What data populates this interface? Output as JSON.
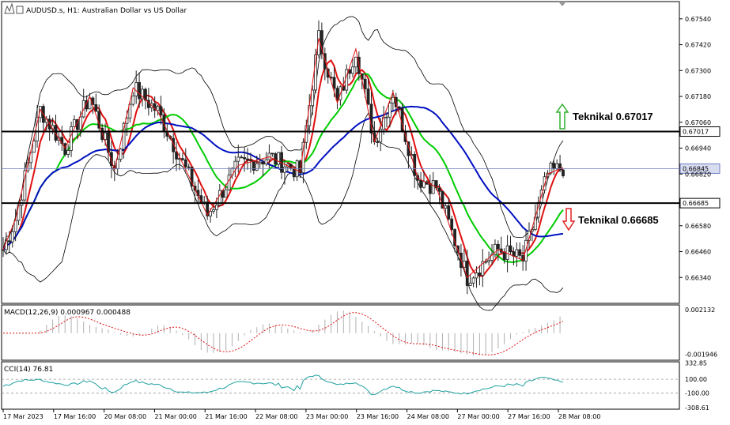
{
  "chart_data": {
    "type": "candlestick",
    "title": "AUDUSD.s, H1:  Australian Dollar vs US Dollar",
    "symbol": "AUDUSD.s",
    "timeframe": "H1",
    "x_ticks": [
      "17 Mar 2023",
      "17 Mar 16:00",
      "20 Mar 08:00",
      "21 Mar 00:00",
      "21 Mar 16:00",
      "22 Mar 08:00",
      "23 Mar 00:00",
      "23 Mar 16:00",
      "24 Mar 08:00",
      "27 Mar 00:00",
      "27 Mar 16:00",
      "28 Mar 08:00"
    ],
    "price_ticks": [
      "0.67540",
      "0.67420",
      "0.67300",
      "0.67180",
      "0.67060",
      "0.66940",
      "0.66820",
      "0.66580",
      "0.66460",
      "0.66340"
    ],
    "ylim": [
      0.6622,
      0.6762
    ],
    "current_price": "0.66845",
    "levels": [
      {
        "label": "Teknikal 0.67017",
        "value": 0.67017,
        "tag": "0.67017",
        "direction": "up"
      },
      {
        "label": "Teknikal 0.66685",
        "value": 0.66685,
        "tag": "0.66685",
        "direction": "down"
      }
    ],
    "macd": {
      "label": "MACD(12,26,9) 0.000967 0.000488",
      "ticks": [
        "0.002132",
        "-0.001946"
      ],
      "ylim": [
        -0.0024,
        0.0025
      ]
    },
    "cci": {
      "label": "CCI(14) 76.81",
      "ticks": [
        "332.85",
        "100.00",
        "-100.00",
        "-308.61"
      ],
      "ylim": [
        -320,
        340
      ]
    },
    "colors": {
      "bull": "#3a3a3a",
      "bear": "#3a3a3a",
      "ma_fast": "#e01010",
      "ma_mid": "#00cc00",
      "ma_slow": "#0010c0",
      "bands": "#000000",
      "zigzag": "#e01010",
      "macd_hist": "#b0b0b0",
      "macd_signal": "#e01010",
      "cci": "#20a0a0",
      "up_arrow": "#2fb02f",
      "down_arrow": "#e02020",
      "price_line": "#7080c0"
    }
  }
}
